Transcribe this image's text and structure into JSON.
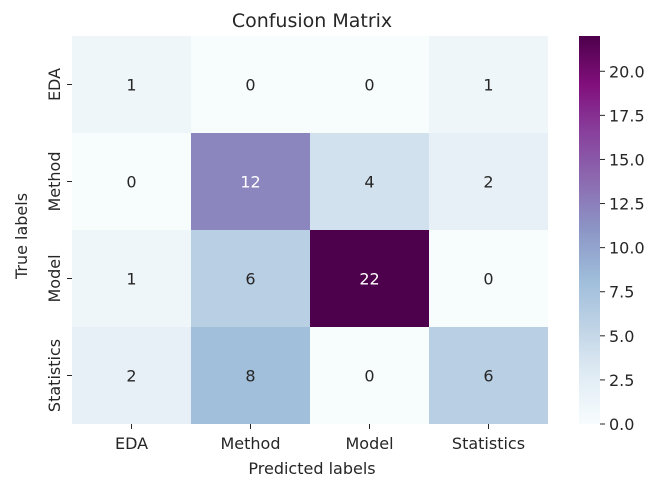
{
  "chart_data": {
    "type": "heatmap",
    "title": "Confusion Matrix",
    "xlabel": "Predicted labels",
    "ylabel": "True labels",
    "x_categories": [
      "EDA",
      "Method",
      "Model",
      "Statistics"
    ],
    "y_categories": [
      "EDA",
      "Method",
      "Model",
      "Statistics"
    ],
    "values": [
      [
        1,
        0,
        0,
        1
      ],
      [
        0,
        12,
        4,
        2
      ],
      [
        1,
        6,
        22,
        0
      ],
      [
        2,
        8,
        0,
        6
      ]
    ],
    "colormap": "BuPu",
    "colorbar": {
      "min": 0,
      "max": 22,
      "ticks": [
        "0.0",
        "2.5",
        "5.0",
        "7.5",
        "10.0",
        "12.5",
        "15.0",
        "17.5",
        "20.0"
      ]
    },
    "annotation_colors": {
      "dark": "#262626",
      "light": "#ffffff"
    },
    "grid": false
  }
}
